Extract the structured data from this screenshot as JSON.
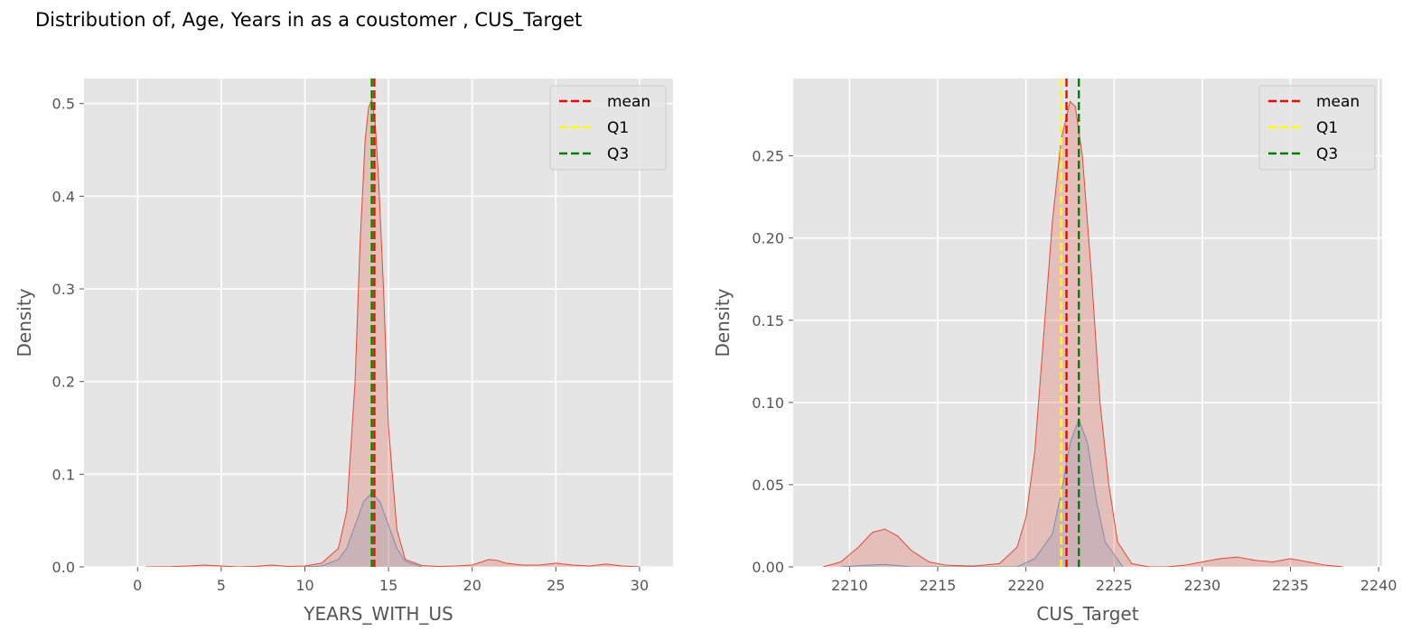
{
  "suptitle": "Distribution of, Age, Years in as a coustomer , CUS_Target",
  "colors": {
    "bg": "#e5e5e5",
    "grid": "#ffffff",
    "kde_main": "#e24a33",
    "kde_sub": "#7a8fb0",
    "mean": "#ff0000",
    "q1": "#ffff00",
    "q3": "#008000"
  },
  "chart_data": [
    {
      "type": "area",
      "xlabel": "YEARS_WITH_US",
      "ylabel": "Density",
      "xlim": [
        -3.2,
        32
      ],
      "ylim": [
        0,
        0.527
      ],
      "xticks": [
        0,
        5,
        10,
        15,
        20,
        25,
        30
      ],
      "yticks": [
        0.0,
        0.1,
        0.2,
        0.3,
        0.4,
        0.5
      ],
      "ytick_labels": [
        "0.0",
        "0.1",
        "0.2",
        "0.3",
        "0.4",
        "0.5"
      ],
      "legend": {
        "placement": "upper right",
        "entries": [
          "mean",
          "Q1",
          "Q3"
        ]
      },
      "vlines": {
        "mean": 14.15,
        "Q1": 14.0,
        "Q3": 14.0
      },
      "series": [
        {
          "x": [
            0.5,
            2,
            3,
            4,
            5,
            6,
            7,
            8,
            9,
            10,
            11,
            12,
            12.5,
            13,
            13.3,
            13.6,
            13.8,
            14,
            14.2,
            14.4,
            14.7,
            15,
            15.5,
            16,
            17,
            18,
            19,
            20,
            20.5,
            21,
            21.5,
            22,
            23,
            24,
            25,
            26,
            27,
            28,
            29,
            30
          ],
          "y": [
            0,
            0.0003,
            0.001,
            0.002,
            0.001,
            0,
            0.0005,
            0.002,
            0.0005,
            0.001,
            0.004,
            0.02,
            0.06,
            0.2,
            0.35,
            0.46,
            0.495,
            0.505,
            0.48,
            0.42,
            0.3,
            0.15,
            0.04,
            0.008,
            0.0015,
            0.0005,
            0.001,
            0.002,
            0.005,
            0.008,
            0.007,
            0.004,
            0.002,
            0.002,
            0.004,
            0.002,
            0.001,
            0.003,
            0.001,
            0
          ]
        },
        {
          "x": [
            10,
            11,
            12,
            12.5,
            13,
            13.5,
            14,
            14.5,
            15,
            15.5,
            16,
            17
          ],
          "y": [
            0,
            0.001,
            0.008,
            0.02,
            0.045,
            0.07,
            0.08,
            0.07,
            0.045,
            0.02,
            0.006,
            0
          ]
        }
      ]
    },
    {
      "type": "area",
      "xlabel": "CUS_Target",
      "ylabel": "Density",
      "xlim": [
        2206.8,
        2240.2
      ],
      "ylim": [
        0,
        0.297
      ],
      "xticks": [
        2210,
        2215,
        2220,
        2225,
        2230,
        2235,
        2240
      ],
      "yticks": [
        0.0,
        0.05,
        0.1,
        0.15,
        0.2,
        0.25
      ],
      "ytick_labels": [
        "0.00",
        "0.05",
        "0.10",
        "0.15",
        "0.20",
        "0.25"
      ],
      "legend": {
        "placement": "upper right",
        "entries": [
          "mean",
          "Q1",
          "Q3"
        ]
      },
      "vlines": {
        "mean": 2222.3,
        "Q1": 2222.0,
        "Q3": 2223.0
      },
      "series": [
        {
          "x": [
            2208.5,
            2209.5,
            2210.5,
            2211.3,
            2212,
            2212.7,
            2213.5,
            2214.5,
            2215.5,
            2217,
            2218.5,
            2219.5,
            2220,
            2220.5,
            2221,
            2221.5,
            2222,
            2222.5,
            2222.8,
            2223.2,
            2223.7,
            2224.2,
            2224.7,
            2225.2,
            2226,
            2227,
            2228,
            2229,
            2230,
            2231,
            2232,
            2233,
            2234,
            2235,
            2236,
            2237,
            2238
          ],
          "y": [
            0,
            0.003,
            0.012,
            0.021,
            0.023,
            0.019,
            0.01,
            0.003,
            0.001,
            0.0005,
            0.002,
            0.012,
            0.03,
            0.07,
            0.14,
            0.21,
            0.26,
            0.283,
            0.28,
            0.25,
            0.18,
            0.1,
            0.05,
            0.015,
            0.002,
            0,
            0,
            0.001,
            0.003,
            0.005,
            0.006,
            0.004,
            0.003,
            0.005,
            0.003,
            0.001,
            0
          ]
        },
        {
          "x": [
            2209.5,
            2211,
            2212,
            2213.5,
            2219.5,
            2220.5,
            2221.5,
            2222,
            2222.5,
            2223,
            2223.5,
            2224,
            2224.5,
            2225.5
          ],
          "y": [
            0,
            0.001,
            0.0015,
            0,
            0,
            0.005,
            0.02,
            0.045,
            0.075,
            0.09,
            0.075,
            0.04,
            0.015,
            0
          ]
        }
      ]
    }
  ]
}
